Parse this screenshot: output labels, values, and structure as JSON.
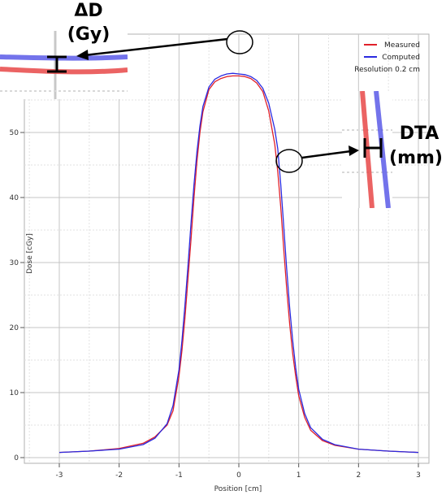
{
  "chart_data": {
    "type": "line",
    "xlabel": "Position [cm]",
    "ylabel": "Dose [cGy]",
    "xlim": [
      -3,
      3
    ],
    "ylim": [
      0,
      57
    ],
    "x_ticks": [
      -3,
      -2,
      -1,
      0,
      1,
      2,
      3
    ],
    "y_ticks": [
      0,
      10,
      20,
      30,
      40,
      50
    ],
    "grid": true,
    "legend_position": "top-right",
    "legend_note": "Resolution 0.2 cm",
    "series": [
      {
        "name": "Measured",
        "color": "#e0202a",
        "x": [
          -3.0,
          -2.5,
          -2.0,
          -1.6,
          -1.4,
          -1.2,
          -1.1,
          -1.0,
          -0.95,
          -0.9,
          -0.85,
          -0.8,
          -0.75,
          -0.7,
          -0.65,
          -0.6,
          -0.5,
          -0.4,
          -0.3,
          -0.2,
          -0.1,
          0.0,
          0.1,
          0.2,
          0.3,
          0.4,
          0.5,
          0.6,
          0.65,
          0.7,
          0.75,
          0.8,
          0.85,
          0.9,
          0.95,
          1.0,
          1.1,
          1.2,
          1.4,
          1.6,
          2.0,
          2.5,
          3.0
        ],
        "y": [
          0.8,
          1.0,
          1.4,
          2.2,
          3.2,
          5.0,
          7.2,
          12.5,
          16.5,
          21.5,
          27.5,
          33.5,
          40.0,
          45.5,
          50.0,
          53.2,
          56.6,
          57.8,
          58.3,
          58.6,
          58.7,
          58.7,
          58.6,
          58.3,
          57.6,
          56.3,
          53.3,
          48.2,
          44.0,
          38.5,
          32.0,
          26.0,
          20.5,
          16.0,
          12.5,
          9.5,
          6.2,
          4.2,
          2.6,
          1.9,
          1.3,
          1.0,
          0.8
        ]
      },
      {
        "name": "Computed",
        "color": "#2a2ae0",
        "x": [
          -3.0,
          -2.5,
          -2.0,
          -1.6,
          -1.4,
          -1.2,
          -1.1,
          -1.0,
          -0.95,
          -0.9,
          -0.85,
          -0.8,
          -0.75,
          -0.7,
          -0.65,
          -0.6,
          -0.5,
          -0.4,
          -0.3,
          -0.2,
          -0.1,
          0.0,
          0.1,
          0.2,
          0.3,
          0.4,
          0.5,
          0.6,
          0.65,
          0.7,
          0.75,
          0.8,
          0.85,
          0.9,
          0.95,
          1.0,
          1.1,
          1.2,
          1.4,
          1.6,
          2.0,
          2.5,
          3.0
        ],
        "y": [
          0.8,
          1.0,
          1.3,
          2.0,
          3.0,
          5.2,
          8.0,
          13.5,
          18.0,
          23.5,
          29.5,
          36.0,
          42.0,
          47.0,
          51.0,
          54.0,
          57.0,
          58.2,
          58.7,
          59.0,
          59.1,
          59.0,
          58.9,
          58.6,
          58.0,
          56.8,
          54.5,
          50.5,
          47.5,
          42.0,
          35.5,
          29.0,
          23.0,
          18.0,
          13.8,
          10.5,
          6.8,
          4.6,
          2.8,
          2.0,
          1.3,
          1.0,
          0.8
        ]
      }
    ],
    "annotations": {
      "delta_dose": [
        "ΔD",
        "(Gy)"
      ],
      "dta": [
        "DTA",
        "(mm)"
      ]
    }
  }
}
